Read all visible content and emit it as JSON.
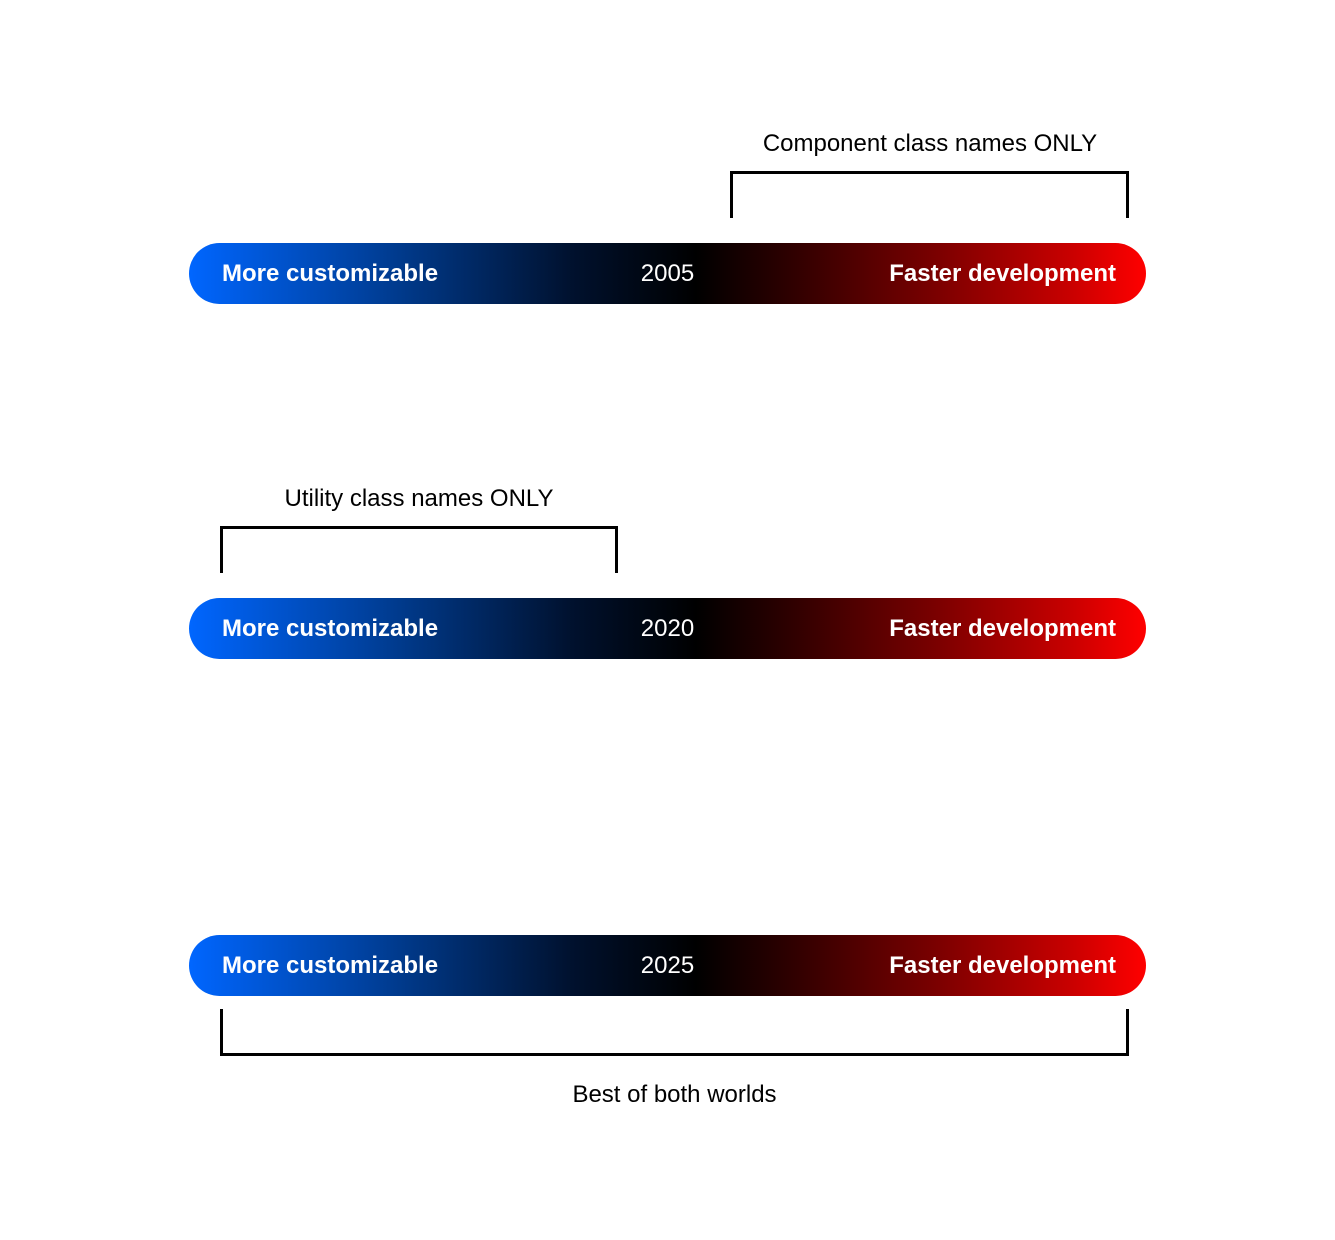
{
  "rows": [
    {
      "year": "2005",
      "left_label": "More customizable",
      "right_label": "Faster development",
      "bracket_caption": "Component class names ONLY"
    },
    {
      "year": "2020",
      "left_label": "More customizable",
      "right_label": "Faster development",
      "bracket_caption": "Utility class names ONLY"
    },
    {
      "year": "2025",
      "left_label": "More customizable",
      "right_label": "Faster development",
      "bracket_caption": "Best of both worlds"
    }
  ],
  "colors": {
    "gradient_start": "#0066ff",
    "gradient_mid": "#000000",
    "gradient_end": "#ff0000",
    "bracket": "#000000"
  }
}
